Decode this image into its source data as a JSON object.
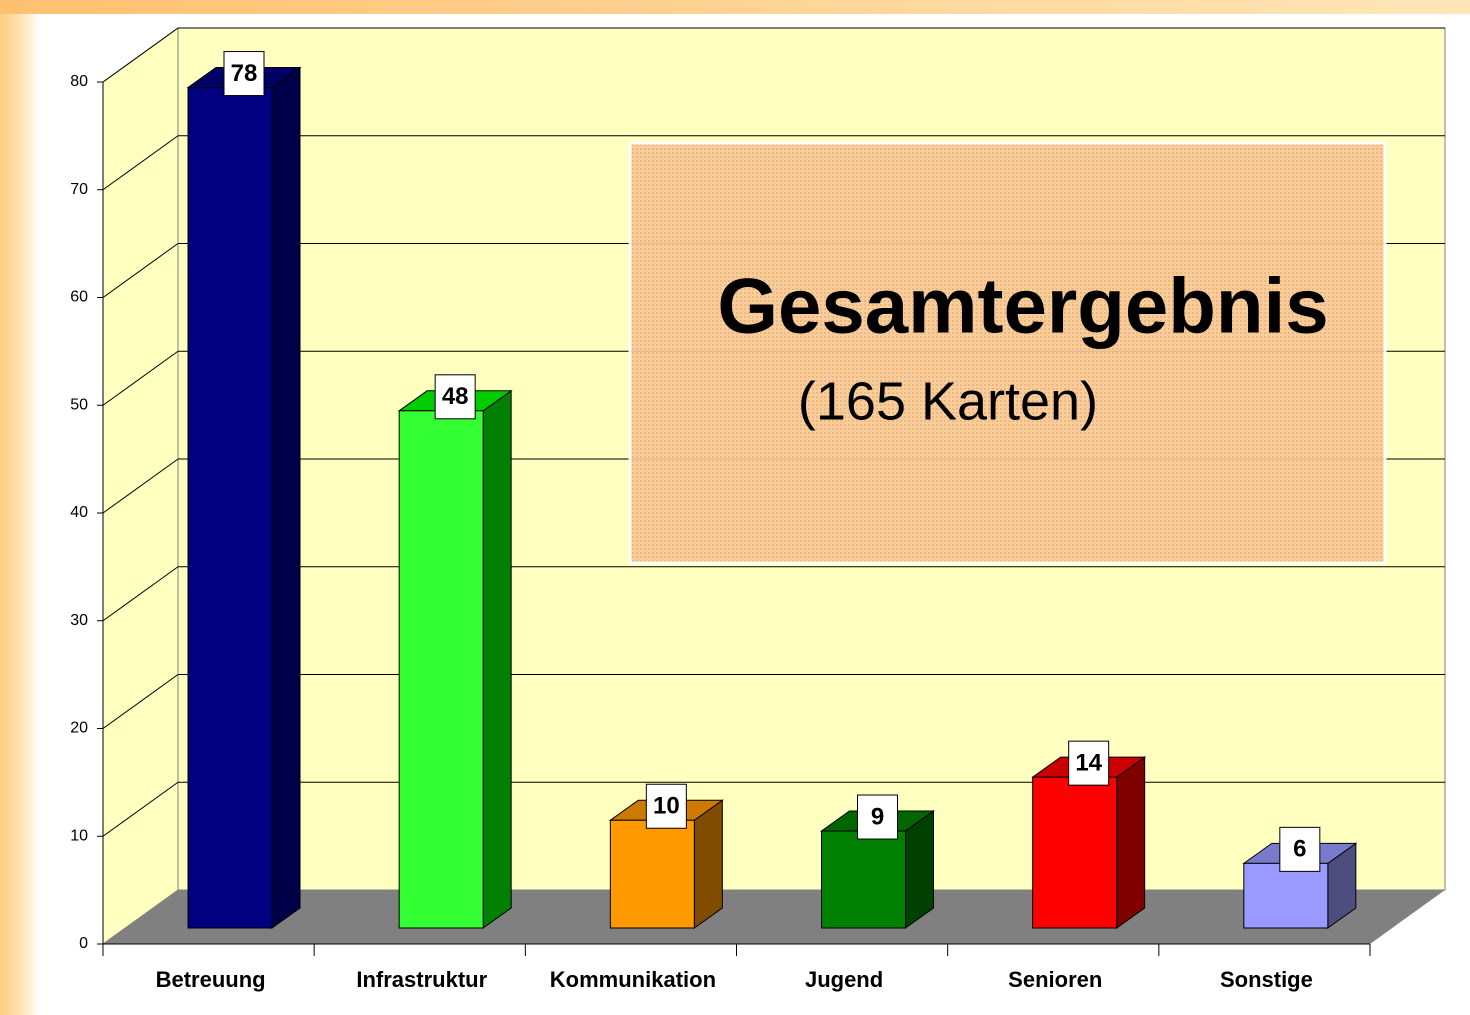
{
  "chart_data": {
    "type": "bar3d",
    "categories": [
      "Betreuung",
      "Infrastruktur",
      "Kommunikation",
      "Jugend",
      "Senioren",
      "Sonstige"
    ],
    "values": [
      78,
      48,
      10,
      9,
      14,
      6
    ],
    "colors": [
      "#000080",
      "#33ff33",
      "#ff9900",
      "#008000",
      "#ff0000",
      "#9999ff"
    ],
    "side_colors": [
      "#000048",
      "#008000",
      "#7f4c00",
      "#004000",
      "#800000",
      "#4d4d80"
    ],
    "top_colors": [
      "#000066",
      "#00cc00",
      "#cc7a00",
      "#006600",
      "#cc0000",
      "#7a7acc"
    ],
    "ylim": [
      0,
      80
    ],
    "yticks": [
      0,
      10,
      20,
      30,
      40,
      50,
      60,
      70,
      80
    ],
    "grid": true,
    "annotation": {
      "title": "Gesamtergebnis",
      "subtitle": "(165 Karten)"
    }
  }
}
